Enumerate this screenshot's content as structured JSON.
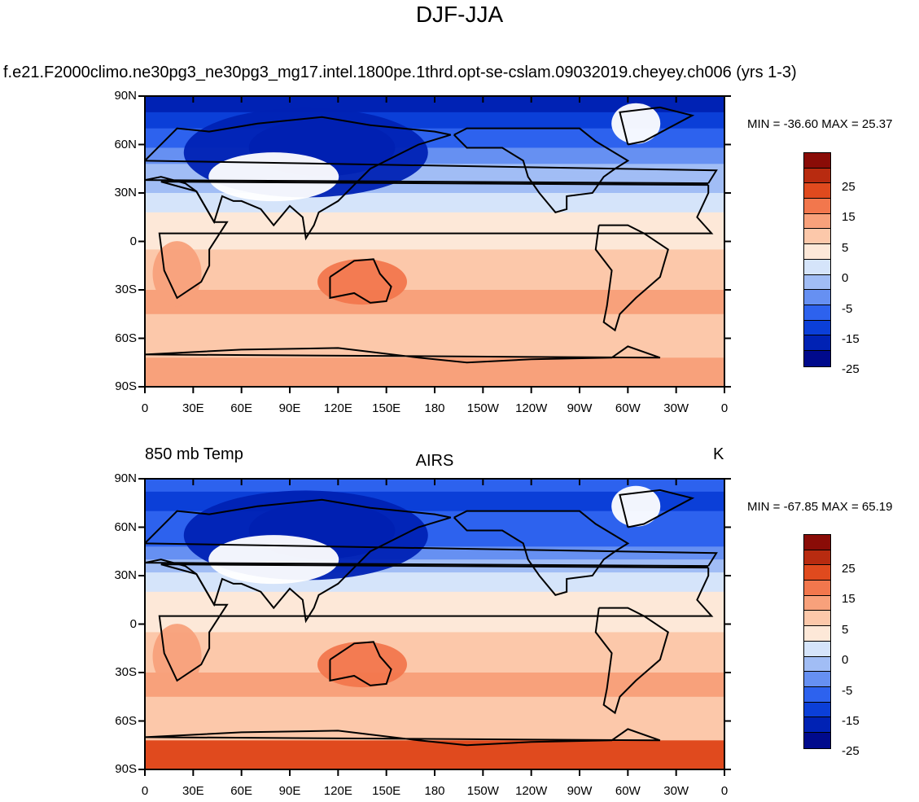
{
  "figure_title": "DJF-JJA",
  "palette": [
    "#000a8c",
    "#0022b4",
    "#0b3fd8",
    "#2d62ee",
    "#6690f2",
    "#a1bdf5",
    "#d5e4fa",
    "#fde8d8",
    "#fcc8aa",
    "#f8a17b",
    "#f2774d",
    "#e04a1e",
    "#b82b10",
    "#8a0c07"
  ],
  "chart_data": [
    {
      "type": "heatmap",
      "panel": "model",
      "left_title": "",
      "center_title": "f.e21.F2000climo.ne30pg3_ne30pg3_mg17.intel.1800pe.1thrd.opt-se-cslam.09032019.cheyey.ch006 (yrs 1-3)",
      "right_title": "K",
      "stats": "MIN = -36.60 MAX =  25.37",
      "x_ticks": [
        "0",
        "30E",
        "60E",
        "90E",
        "120E",
        "150E",
        "180",
        "150W",
        "120W",
        "90W",
        "60W",
        "30W",
        "0"
      ],
      "y_ticks": [
        "90N",
        "60N",
        "30N",
        "0",
        "30S",
        "60S",
        "90S"
      ],
      "colorbar_labels": [
        "25",
        "15",
        "5",
        "0",
        "-5",
        "-15",
        "-25"
      ],
      "colorbar_levels": [
        -30,
        -25,
        -20,
        -15,
        -10,
        -5,
        0,
        5,
        10,
        15,
        20,
        25,
        30
      ],
      "units": "K"
    },
    {
      "type": "heatmap",
      "panel": "obs",
      "left_title": "850 mb Temp",
      "center_title": "AIRS",
      "right_title": "K",
      "stats": "MIN = -67.85 MAX =  65.19",
      "x_ticks": [
        "0",
        "30E",
        "60E",
        "90E",
        "120E",
        "150E",
        "180",
        "150W",
        "120W",
        "90W",
        "60W",
        "30W",
        "0"
      ],
      "y_ticks": [
        "90N",
        "60N",
        "30N",
        "0",
        "30S",
        "60S",
        "90S"
      ],
      "colorbar_labels": [
        "25",
        "15",
        "5",
        "0",
        "-5",
        "-15",
        "-25"
      ],
      "colorbar_levels": [
        -30,
        -25,
        -20,
        -15,
        -10,
        -5,
        0,
        5,
        10,
        15,
        20,
        25,
        30
      ],
      "units": "K"
    }
  ]
}
